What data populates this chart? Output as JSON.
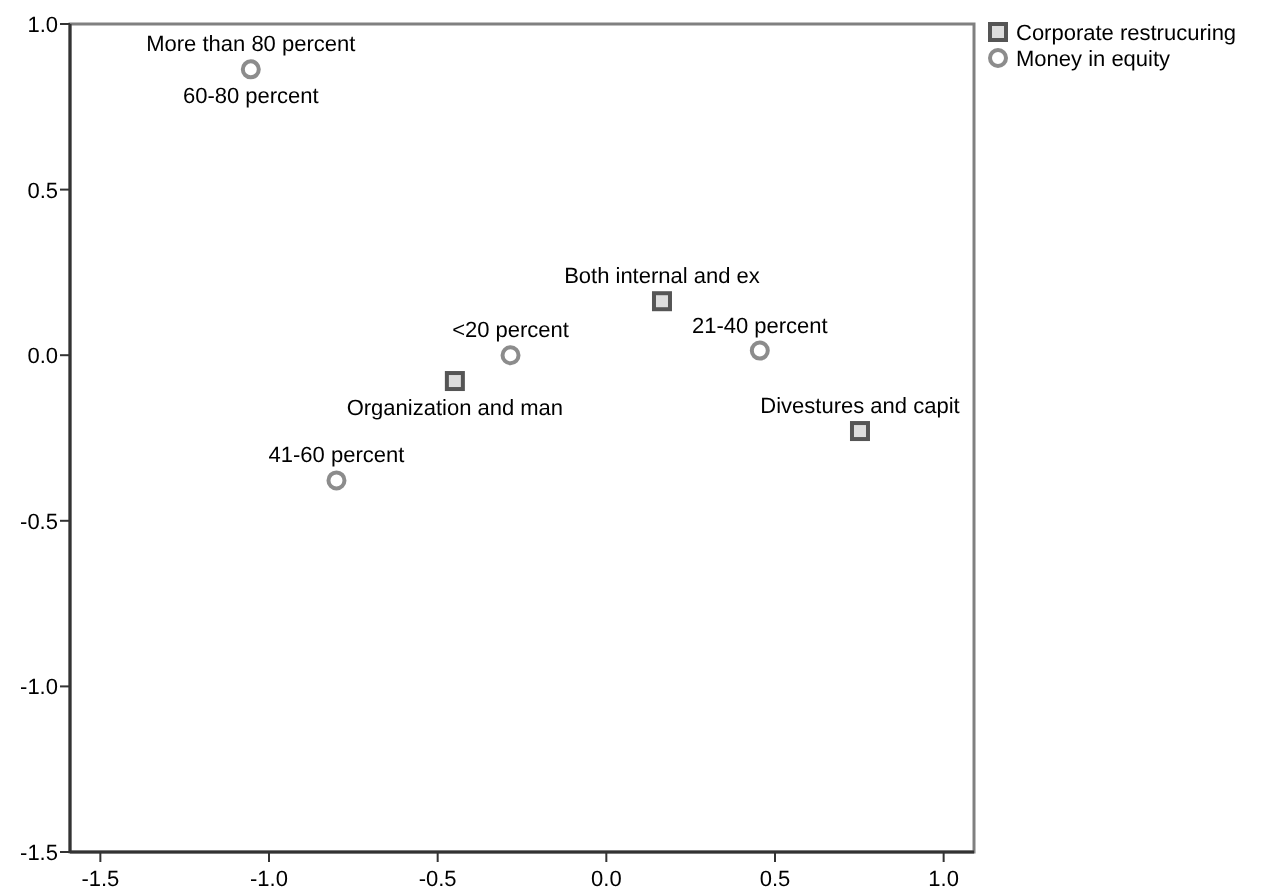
{
  "chart_data": {
    "type": "scatter",
    "legend": "top right",
    "xlim": [
      -1.59,
      1.09
    ],
    "ylim": [
      -1.5,
      1.0
    ],
    "xticks": [
      {
        "value": -1.5,
        "label": "-1.5"
      },
      {
        "value": -1,
        "label": "-1.0"
      },
      {
        "value": -0.5,
        "label": "-0.5"
      },
      {
        "value": 0,
        "label": "0.0"
      },
      {
        "value": 0.5,
        "label": "0.5"
      },
      {
        "value": 1,
        "label": "1.0"
      }
    ],
    "yticks": [
      {
        "value": -1.5,
        "label": "-1.5"
      },
      {
        "value": -1,
        "label": "-1.0"
      },
      {
        "value": -0.5,
        "label": "-0.5"
      },
      {
        "value": 0,
        "label": "0.0"
      },
      {
        "value": 0.5,
        "label": "0.5"
      },
      {
        "value": 1,
        "label": "1.0"
      }
    ],
    "series": [
      {
        "name": "Corporate restrucuring",
        "color": "#555555",
        "marker": "square",
        "x": [
          0.165,
          -0.449,
          0.752
        ],
        "values": [
          0.163,
          -0.078,
          -0.229
        ]
      },
      {
        "name": "Money in equity",
        "color": "#8c8c8c",
        "marker": "circle",
        "x": [
          -1.054,
          -0.284,
          0.455,
          -0.8
        ],
        "values": [
          0.863,
          0.0,
          0.014,
          -0.378
        ]
      }
    ],
    "annotations": [
      {
        "text": "Both internal and ex",
        "x": 0.165,
        "y": 0.163
      },
      {
        "text": "Organization and man",
        "x": -0.449,
        "y": -0.078
      },
      {
        "text": "Divestures and capit",
        "x": 0.752,
        "y": -0.229
      },
      {
        "text": "More than 80 percent",
        "x": -1.054,
        "y": 0.863
      },
      {
        "text": "60-80 percent",
        "x": -1.054,
        "y": 0.863
      },
      {
        "text": "<20 percent",
        "x": -0.284,
        "y": 0.0
      },
      {
        "text": "21-40 percent",
        "x": 0.455,
        "y": 0.014
      },
      {
        "text": "41-60 percent",
        "x": -0.8,
        "y": -0.378
      }
    ]
  }
}
